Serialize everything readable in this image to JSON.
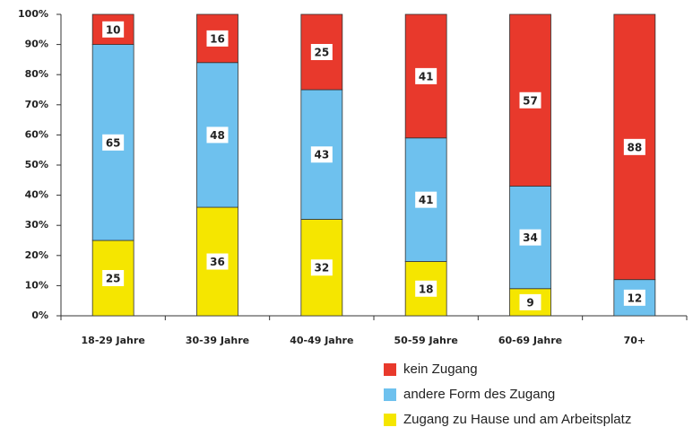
{
  "chart_data": {
    "type": "stacked_bar",
    "categories": [
      "18-29 Jahre",
      "30-39 Jahre",
      "40-49 Jahre",
      "50-59 Jahre",
      "60-69 Jahre",
      "70+"
    ],
    "series": [
      {
        "name": "Zugang zu Hause und am Arbeitsplatz",
        "color": "#f5e600",
        "values": [
          25,
          36,
          32,
          18,
          9,
          null
        ]
      },
      {
        "name": "andere Form des Zugang",
        "color": "#6ec1ee",
        "values": [
          65,
          48,
          43,
          41,
          34,
          12
        ]
      },
      {
        "name": "kein Zugang",
        "color": "#e8392c",
        "values": [
          10,
          16,
          25,
          41,
          57,
          88
        ]
      }
    ],
    "ylim": [
      0,
      100
    ],
    "yticks": [
      {
        "value": 0,
        "label": "0%"
      },
      {
        "value": 10,
        "label": "10%"
      },
      {
        "value": 20,
        "label": "20%"
      },
      {
        "value": 30,
        "label": "30%"
      },
      {
        "value": 40,
        "label": "40%"
      },
      {
        "value": 50,
        "label": "50%"
      },
      {
        "value": 60,
        "label": "60%"
      },
      {
        "value": 70,
        "label": "70%"
      },
      {
        "value": 80,
        "label": "80%"
      },
      {
        "value": 90,
        "label": "90%"
      },
      {
        "value": 100,
        "label": "100%"
      }
    ],
    "legend": "bottom-right"
  }
}
